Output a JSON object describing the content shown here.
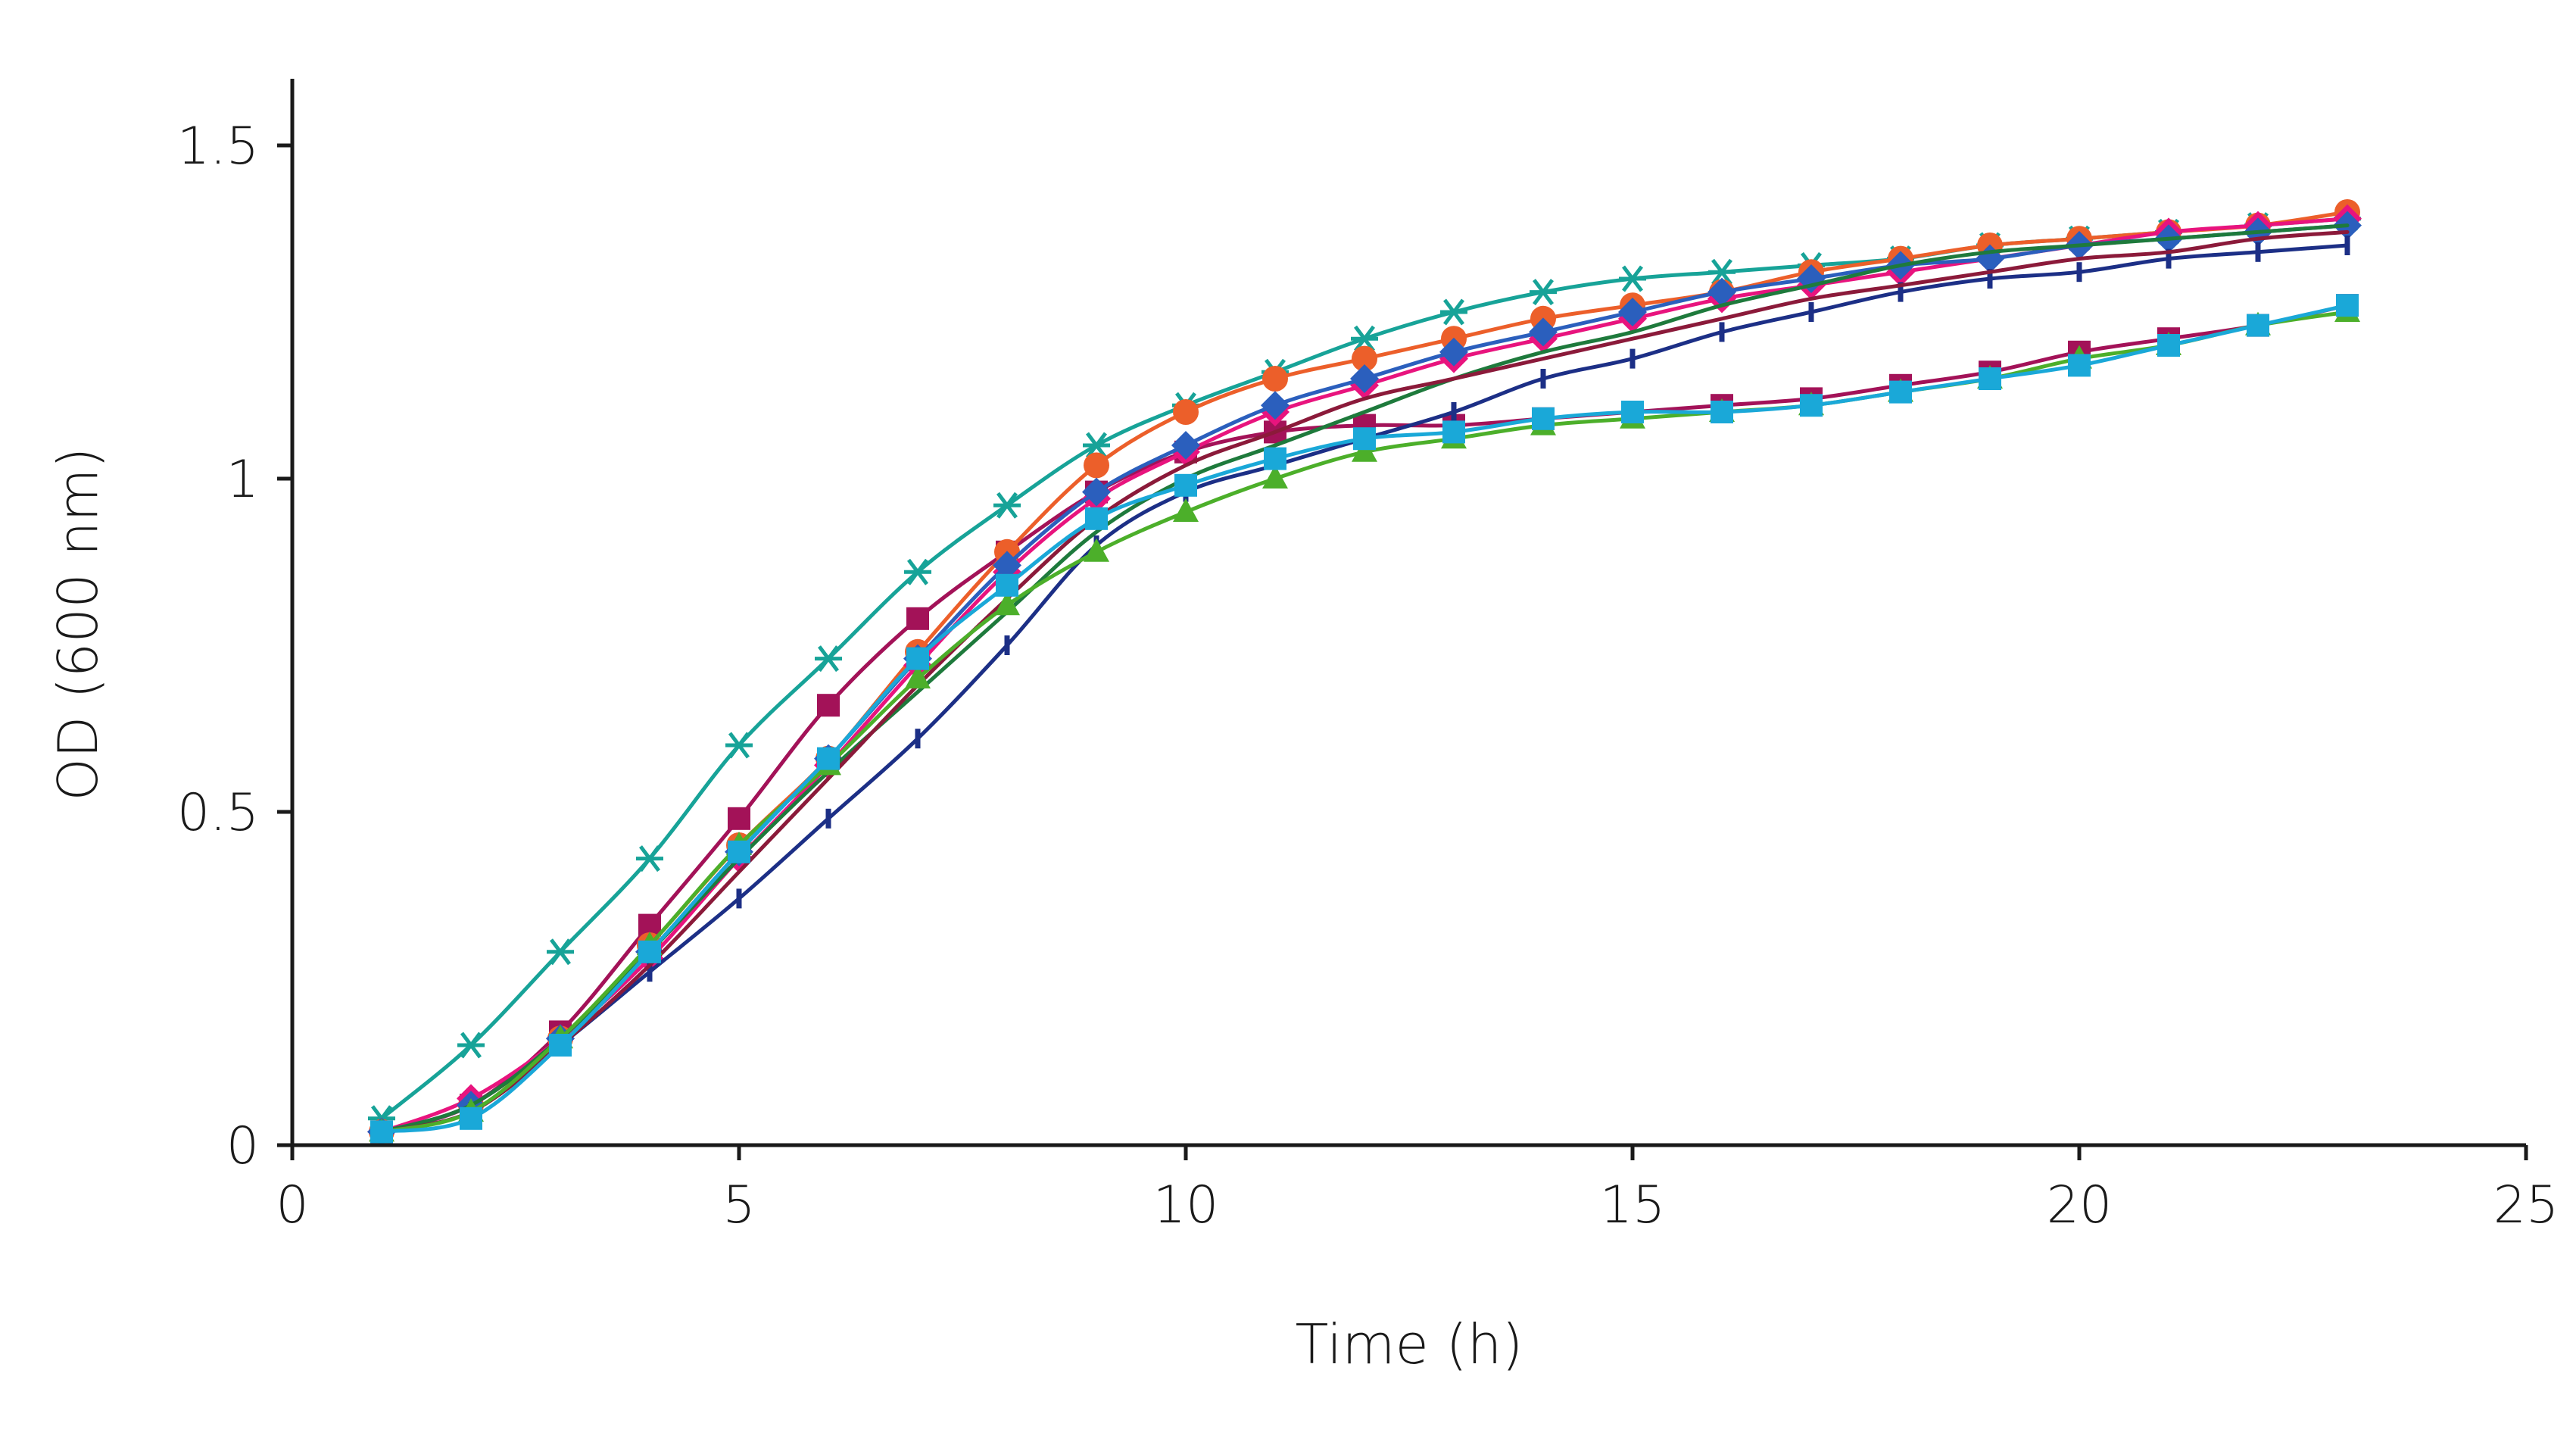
{
  "chart_data": {
    "type": "line",
    "title": "",
    "xlabel": "Time (h)",
    "ylabel": "OD (600 nm)",
    "xlim": [
      0,
      25
    ],
    "ylim": [
      0,
      1.6
    ],
    "x_ticks": [
      0,
      5,
      10,
      15,
      20,
      25
    ],
    "x_tick_labels": [
      "0",
      "5",
      "10",
      "15",
      "20",
      "25"
    ],
    "y_ticks": [
      0,
      0.5,
      1,
      1.5
    ],
    "y_tick_labels": [
      "0",
      "0.5",
      "1",
      "1.5"
    ],
    "grid": false,
    "legend": "none",
    "x": [
      1,
      2,
      3,
      4,
      5,
      6,
      7,
      8,
      9,
      10,
      11,
      12,
      13,
      14,
      15,
      16,
      17,
      18,
      19,
      20,
      21,
      22,
      23
    ],
    "series": [
      {
        "color": "#17a398",
        "marker": "asterisk",
        "values": [
          0.04,
          0.15,
          0.29,
          0.43,
          0.6,
          0.73,
          0.86,
          0.96,
          1.05,
          1.11,
          1.16,
          1.21,
          1.25,
          1.28,
          1.3,
          1.31,
          1.32,
          1.33,
          1.35,
          1.36,
          1.37,
          1.38,
          1.39
        ]
      },
      {
        "color": "#a31258",
        "marker": "square",
        "values": [
          0.02,
          0.06,
          0.17,
          0.33,
          0.49,
          0.66,
          0.79,
          0.89,
          0.98,
          1.04,
          1.07,
          1.08,
          1.08,
          1.09,
          1.1,
          1.11,
          1.12,
          1.14,
          1.16,
          1.19,
          1.21,
          1.23,
          1.26
        ]
      },
      {
        "color": "#ec5f2a",
        "marker": "circle",
        "values": [
          0.02,
          0.06,
          0.16,
          0.3,
          0.45,
          0.58,
          0.74,
          0.89,
          1.02,
          1.1,
          1.15,
          1.18,
          1.21,
          1.24,
          1.26,
          1.28,
          1.31,
          1.33,
          1.35,
          1.36,
          1.37,
          1.38,
          1.4
        ]
      },
      {
        "color": "#e8147e",
        "marker": "diamond",
        "values": [
          0.02,
          0.07,
          0.16,
          0.28,
          0.43,
          0.57,
          0.72,
          0.86,
          0.97,
          1.04,
          1.1,
          1.14,
          1.18,
          1.21,
          1.24,
          1.27,
          1.29,
          1.31,
          1.33,
          1.35,
          1.37,
          1.38,
          1.39
        ]
      },
      {
        "color": "#2b5fbd",
        "marker": "diamond",
        "values": [
          0.02,
          0.06,
          0.16,
          0.29,
          0.44,
          0.58,
          0.73,
          0.87,
          0.98,
          1.05,
          1.11,
          1.15,
          1.19,
          1.22,
          1.25,
          1.28,
          1.3,
          1.32,
          1.33,
          1.35,
          1.36,
          1.37,
          1.38
        ]
      },
      {
        "color": "#1c2f86",
        "marker": "dash",
        "values": [
          0.02,
          0.05,
          0.15,
          0.26,
          0.37,
          0.49,
          0.61,
          0.75,
          0.9,
          0.98,
          1.02,
          1.06,
          1.1,
          1.15,
          1.18,
          1.22,
          1.25,
          1.28,
          1.3,
          1.31,
          1.33,
          1.34,
          1.35
        ]
      },
      {
        "color": "#1e7a3c",
        "marker": "none",
        "values": [
          0.02,
          0.06,
          0.16,
          0.29,
          0.43,
          0.56,
          0.68,
          0.8,
          0.92,
          1.0,
          1.05,
          1.1,
          1.15,
          1.19,
          1.22,
          1.26,
          1.29,
          1.32,
          1.34,
          1.35,
          1.36,
          1.37,
          1.38
        ]
      },
      {
        "color": "#8b1a3a",
        "marker": "none",
        "values": [
          0.02,
          0.05,
          0.15,
          0.27,
          0.41,
          0.55,
          0.69,
          0.82,
          0.94,
          1.02,
          1.07,
          1.12,
          1.15,
          1.18,
          1.21,
          1.24,
          1.27,
          1.29,
          1.31,
          1.33,
          1.34,
          1.36,
          1.37
        ]
      },
      {
        "color": "#4caf2a",
        "marker": "triangle",
        "values": [
          0.02,
          0.05,
          0.16,
          0.3,
          0.45,
          0.57,
          0.7,
          0.81,
          0.89,
          0.95,
          1.0,
          1.04,
          1.06,
          1.08,
          1.09,
          1.1,
          1.11,
          1.13,
          1.15,
          1.18,
          1.2,
          1.23,
          1.25
        ]
      },
      {
        "color": "#1aa8d8",
        "marker": "square",
        "values": [
          0.02,
          0.04,
          0.15,
          0.29,
          0.44,
          0.58,
          0.73,
          0.84,
          0.94,
          0.99,
          1.03,
          1.06,
          1.07,
          1.09,
          1.1,
          1.1,
          1.11,
          1.13,
          1.15,
          1.17,
          1.2,
          1.23,
          1.26
        ]
      }
    ]
  }
}
